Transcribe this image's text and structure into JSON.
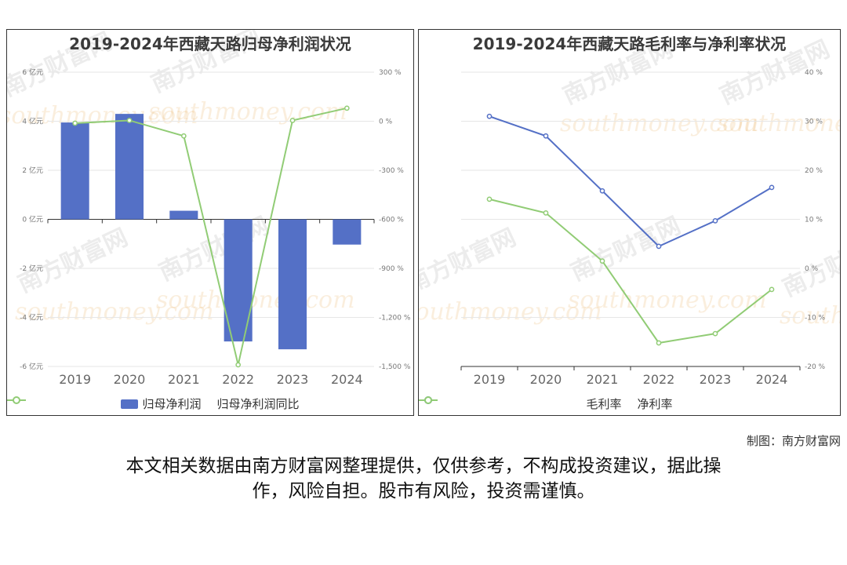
{
  "charts": {
    "left": {
      "title": "2019-2024年西藏天路归母净利润状况"
    },
    "right": {
      "title": "2019-2024年西藏天路毛利率与净利率状况"
    }
  },
  "legend": {
    "bar_label": "归母净利润",
    "yoy_label": "归母净利润同比",
    "gross_label": "毛利率",
    "net_label": "净利率"
  },
  "watermark": {
    "cn": "南方财富网",
    "en": "southmoney.com"
  },
  "footer": {
    "credit": "制图：南方财富网",
    "disclaimer_line1": "本文相关数据由南方财富网整理提供，仅供参考，不构成投资建议，据此操",
    "disclaimer_line2": "作，风险自担。股市有风险，投资需谨慎。"
  },
  "colors": {
    "blue": "#5470c6",
    "green": "#91cc75"
  },
  "chart_data": [
    {
      "type": "bar",
      "title": "2019-2024年西藏天路归母净利润状况",
      "categories": [
        "2019",
        "2020",
        "2021",
        "2022",
        "2023",
        "2024"
      ],
      "series": [
        {
          "name": "归母净利润",
          "type": "bar",
          "axis": "left",
          "values": [
            3.95,
            4.3,
            0.35,
            -4.98,
            -5.3,
            -1.03
          ]
        },
        {
          "name": "归母净利润同比",
          "type": "line",
          "axis": "right",
          "values": [
            -12,
            5,
            -90,
            -1490,
            5,
            80
          ]
        }
      ],
      "y_left": {
        "min": -6,
        "max": 6,
        "ticks": [
          "6 亿元",
          "4 亿元",
          "2 亿元",
          "0 亿元",
          "-2 亿元",
          "-4 亿元",
          "-6 亿元"
        ]
      },
      "y_right": {
        "min": -1500,
        "max": 300,
        "ticks": [
          "300 %",
          "0 %",
          "-300 %",
          "-600 %",
          "-900 %",
          "-1,200 %",
          "-1,500 %"
        ]
      },
      "grid": true,
      "legend": "bottom"
    },
    {
      "type": "line",
      "title": "2019-2024年西藏天路毛利率与净利率状况",
      "categories": [
        "2019",
        "2020",
        "2021",
        "2022",
        "2023",
        "2024"
      ],
      "series": [
        {
          "name": "毛利率",
          "values": [
            31,
            27,
            15.8,
            4.5,
            9.7,
            16.5
          ]
        },
        {
          "name": "净利率",
          "values": [
            14.1,
            11.3,
            1.5,
            -15.2,
            -13.3,
            -4.3
          ]
        }
      ],
      "y": {
        "min": -20,
        "max": 40,
        "ticks": [
          "40 %",
          "30 %",
          "20 %",
          "10 %",
          "0 %",
          "-10 %",
          "-20 %"
        ]
      },
      "grid": true,
      "legend": "bottom"
    }
  ]
}
